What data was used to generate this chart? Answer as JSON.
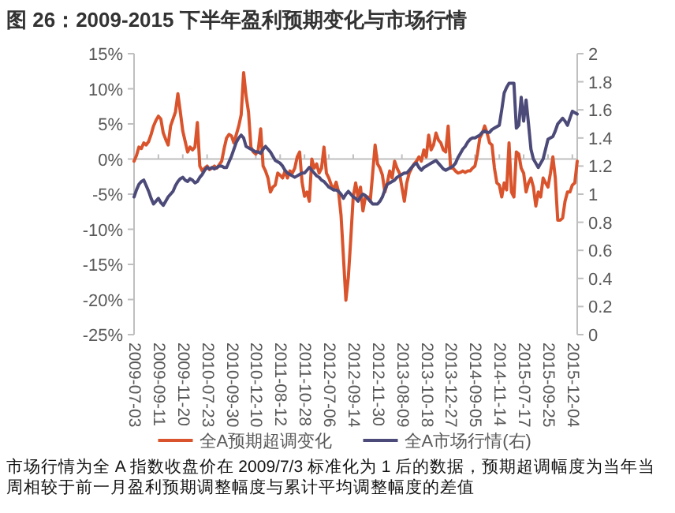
{
  "chart_data": {
    "type": "line",
    "title": "图 26：2009-2015 下半年盈利预期变化与市场行情",
    "categories": [
      "2009-07-03",
      null,
      null,
      null,
      null,
      null,
      null,
      null,
      null,
      null,
      "2009-09-11",
      null,
      null,
      null,
      null,
      null,
      null,
      null,
      null,
      null,
      "2009-11-20",
      null,
      null,
      null,
      null,
      null,
      null,
      null,
      null,
      null,
      "2010-07-23",
      null,
      null,
      null,
      null,
      null,
      null,
      null,
      null,
      null,
      "2010-09-30",
      null,
      null,
      null,
      null,
      null,
      null,
      null,
      null,
      null,
      "2010-12-10",
      null,
      null,
      null,
      null,
      null,
      null,
      null,
      null,
      null,
      "2011-08-12",
      null,
      null,
      null,
      null,
      null,
      null,
      null,
      null,
      null,
      "2011-10-28",
      null,
      null,
      null,
      null,
      null,
      null,
      null,
      null,
      null,
      "2012-07-06",
      null,
      null,
      null,
      null,
      null,
      null,
      null,
      null,
      null,
      "2012-09-14",
      null,
      null,
      null,
      null,
      null,
      null,
      null,
      null,
      null,
      "2012-11-30",
      null,
      null,
      null,
      null,
      null,
      null,
      null,
      null,
      null,
      "2013-08-09",
      null,
      null,
      null,
      null,
      null,
      null,
      null,
      null,
      null,
      "2013-10-18",
      null,
      null,
      null,
      null,
      null,
      null,
      null,
      null,
      null,
      "2013-12-27",
      null,
      null,
      null,
      null,
      null,
      null,
      null,
      null,
      null,
      "2014-09-05",
      null,
      null,
      null,
      null,
      null,
      null,
      null,
      null,
      null,
      "2014-11-14",
      null,
      null,
      null,
      null,
      null,
      null,
      null,
      null,
      null,
      "2015-07-17",
      null,
      null,
      null,
      null,
      null,
      null,
      null,
      null,
      null,
      "2015-09-25",
      null,
      null,
      null,
      null,
      null,
      null,
      null,
      null,
      null,
      "2015-12-04",
      null,
      null
    ],
    "series": [
      {
        "name": "全A预期超调变化",
        "color": "#d9542c",
        "values": [
          -0.3,
          0.5,
          1.7,
          1.5,
          2.3,
          2.0,
          2.5,
          3.5,
          4.7,
          5.5,
          6.1,
          5.7,
          3.7,
          2.8,
          2.0,
          4.7,
          5.7,
          6.7,
          9.3,
          6.7,
          4.0,
          2.5,
          1.0,
          1.7,
          1.3,
          1.7,
          5.2,
          -1.0,
          -1.7,
          -1.3,
          -1.0,
          -1.5,
          -1.3,
          -1.0,
          -1.3,
          -0.8,
          -0.3,
          1.5,
          3.0,
          3.5,
          3.3,
          2.3,
          3.5,
          4.7,
          6.3,
          12.3,
          9.0,
          6.7,
          1.7,
          1.0,
          0.7,
          1.3,
          4.3,
          -1.0,
          -1.7,
          -2.7,
          -4.7,
          -4.0,
          -3.7,
          -2.0,
          -2.3,
          -2.7,
          -1.7,
          -2.7,
          -1.7,
          -2.0,
          -1.3,
          0.3,
          1.0,
          -3.3,
          -5.3,
          -4.7,
          -6.0,
          0,
          -1.3,
          -0.7,
          -2.0,
          -1.3,
          1.7,
          -2.0,
          -2.7,
          -3.7,
          -4.3,
          -3.3,
          -4.7,
          -8.0,
          -14.0,
          -20.1,
          -16.8,
          -11.4,
          -5.4,
          -3.4,
          -5.4,
          -4.0,
          -7.4,
          -5.4,
          -5.4,
          -6.0,
          -2.0,
          2.0,
          -0.7,
          -1.3,
          -2.3,
          -4.7,
          -3.4,
          -1.7,
          -2.7,
          -0.3,
          -1.3,
          -2.0,
          -4.0,
          -6.0,
          -3.4,
          -2.0,
          -1.3,
          -0.7,
          -0.3,
          0.3,
          -0.3,
          1.3,
          0.3,
          3.4,
          1.3,
          2.0,
          3.7,
          2.7,
          2.3,
          1.3,
          1.0,
          4.7,
          -1.3,
          -1.3,
          -1.7,
          -2.0,
          -1.9,
          -1.7,
          -1.9,
          -1.7,
          -1.7,
          -1.3,
          -1.0,
          0.7,
          3.0,
          3.7,
          4.7,
          3.7,
          2.3,
          2.0,
          -1.3,
          -3.4,
          -3.7,
          -5.4,
          -3.4,
          -4.4,
          2.3,
          -4.7,
          -5.4,
          1.0,
          0.7,
          -1.3,
          -2.0,
          -4.7,
          -3.4,
          -2.7,
          -4.0,
          -6.7,
          -4.7,
          -5.4,
          -2.7,
          -3.4,
          -4.0,
          -2.0,
          0.3,
          -2.7,
          -8.7,
          -8.7,
          -8.4,
          -6.0,
          -4.7,
          -4.7,
          -3.7,
          -3.4,
          -0.3
        ]
      },
      {
        "name": "全A市场行情(右)",
        "color": "#4c4a78",
        "axis": "y2",
        "values": [
          0.98,
          1.03,
          1.07,
          1.09,
          1.1,
          1.06,
          1.02,
          0.97,
          0.93,
          0.95,
          0.97,
          0.94,
          0.92,
          0.95,
          0.98,
          1.0,
          1.02,
          1.06,
          1.09,
          1.11,
          1.12,
          1.1,
          1.09,
          1.11,
          1.1,
          1.08,
          1.09,
          1.12,
          1.14,
          1.17,
          1.19,
          1.18,
          1.19,
          1.18,
          1.19,
          1.2,
          1.2,
          1.19,
          1.19,
          1.23,
          1.27,
          1.32,
          1.37,
          1.4,
          1.42,
          1.4,
          1.34,
          1.33,
          1.32,
          1.31,
          1.3,
          1.3,
          1.29,
          1.32,
          1.34,
          1.32,
          1.3,
          1.27,
          1.24,
          1.23,
          1.22,
          1.2,
          1.17,
          1.15,
          1.14,
          1.13,
          1.12,
          1.13,
          1.14,
          1.15,
          1.15,
          1.17,
          1.19,
          1.17,
          1.15,
          1.13,
          1.12,
          1.1,
          1.09,
          1.07,
          1.05,
          1.04,
          1.03,
          1.03,
          1.02,
          1.0,
          0.97,
          1.0,
          1.02,
          1.0,
          0.98,
          0.97,
          0.95,
          0.98,
          1.0,
          0.99,
          0.97,
          0.95,
          0.93,
          0.93,
          0.93,
          0.95,
          0.98,
          1.03,
          1.07,
          1.08,
          1.09,
          1.1,
          1.12,
          1.13,
          1.14,
          1.15,
          1.15,
          1.17,
          1.19,
          1.21,
          1.22,
          1.19,
          1.17,
          1.19,
          1.2,
          1.21,
          1.22,
          1.23,
          1.24,
          1.22,
          1.2,
          1.18,
          1.17,
          1.18,
          1.19,
          1.2,
          1.22,
          1.26,
          1.29,
          1.32,
          1.34,
          1.37,
          1.39,
          1.4,
          1.4,
          1.41,
          1.42,
          1.44,
          1.45,
          1.44,
          1.44,
          1.46,
          1.47,
          1.48,
          1.49,
          1.6,
          1.72,
          1.76,
          1.79,
          1.79,
          1.79,
          1.47,
          1.49,
          1.69,
          1.52,
          1.67,
          1.5,
          1.32,
          1.25,
          1.22,
          1.19,
          1.22,
          1.25,
          1.32,
          1.39,
          1.4,
          1.41,
          1.45,
          1.5,
          1.52,
          1.54,
          1.52,
          1.49,
          1.54,
          1.59,
          1.58,
          1.57
        ]
      }
    ],
    "ylim": [
      -25,
      15
    ],
    "yticks": [
      {
        "value": -25,
        "label": "-25%"
      },
      {
        "value": -20,
        "label": "-20%"
      },
      {
        "value": -15,
        "label": "-15%"
      },
      {
        "value": -10,
        "label": "-10%"
      },
      {
        "value": -5,
        "label": "-5%"
      },
      {
        "value": 0,
        "label": "0%"
      },
      {
        "value": 5,
        "label": "5%"
      },
      {
        "value": 10,
        "label": "10%"
      },
      {
        "value": 15,
        "label": "15%"
      }
    ],
    "y2lim": [
      0,
      2
    ],
    "y2ticks": [
      0,
      0.2,
      0.4,
      0.6,
      0.8,
      1,
      1.2,
      1.4,
      1.6,
      1.8,
      2
    ],
    "legend": "bottom",
    "annotations": [
      "市场行情为全 A 指数收盘价在 2009/7/3 标准化为 1 后的数据，预期超调幅度为当年当周相较于前一月盈利预期调整幅度与累计平均调整幅度的差值"
    ]
  }
}
